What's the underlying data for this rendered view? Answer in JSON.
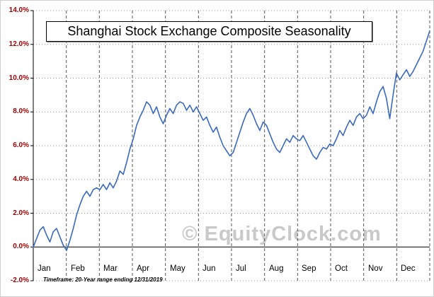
{
  "title": "Shanghai Stock Exchange Composite Seasonality",
  "watermark": "© EquityClock.com",
  "footer": "Timeframe: 20-Year range ending 12/31/2019",
  "chart_data": {
    "type": "line",
    "title": "Shanghai Stock Exchange Composite Seasonality",
    "xlabel": "",
    "ylabel": "",
    "ylim": [
      -2,
      14
    ],
    "grid": true,
    "legend_position": "none",
    "line_color": "#3a69c0",
    "axis_label_color": "#9b0000",
    "ytick_labels": [
      "14.0%",
      "12.0%",
      "10.0%",
      "8.0%",
      "6.0%",
      "4.0%",
      "2.0%",
      "0.0%",
      "-2.0%"
    ],
    "categories": [
      "Jan",
      "Feb",
      "Mar",
      "Apr",
      "May",
      "Jun",
      "Jul",
      "Aug",
      "Sep",
      "Oct",
      "Nov",
      "Dec"
    ],
    "values": [
      0.0,
      0.5,
      1.0,
      1.2,
      0.7,
      0.3,
      0.9,
      1.1,
      0.6,
      0.1,
      -0.2,
      0.4,
      1.1,
      1.9,
      2.5,
      3.0,
      3.3,
      3.0,
      3.4,
      3.5,
      3.4,
      3.7,
      3.4,
      3.8,
      3.5,
      3.9,
      4.5,
      4.3,
      5.0,
      5.8,
      6.4,
      7.2,
      7.7,
      8.1,
      8.6,
      8.4,
      7.9,
      8.3,
      7.7,
      7.3,
      7.8,
      8.2,
      7.9,
      8.4,
      8.6,
      8.5,
      8.1,
      8.4,
      8.0,
      8.3,
      7.9,
      7.5,
      7.7,
      7.2,
      6.8,
      7.1,
      6.5,
      6.0,
      5.7,
      5.4,
      5.6,
      6.2,
      6.8,
      7.4,
      7.9,
      8.2,
      7.8,
      7.3,
      6.9,
      7.4,
      7.2,
      6.7,
      6.2,
      5.8,
      5.6,
      6.0,
      6.4,
      6.2,
      6.6,
      6.4,
      6.3,
      6.6,
      6.2,
      5.8,
      5.4,
      5.2,
      5.6,
      5.9,
      5.8,
      6.1,
      6.0,
      6.4,
      6.9,
      6.6,
      7.1,
      7.5,
      7.2,
      7.7,
      7.9,
      7.6,
      7.8,
      8.3,
      7.9,
      8.6,
      9.2,
      9.5,
      8.8,
      7.6,
      9.0,
      10.3,
      9.9,
      10.2,
      10.5,
      10.1,
      10.4,
      10.8,
      11.2,
      11.6,
      12.2,
      12.8
    ]
  }
}
